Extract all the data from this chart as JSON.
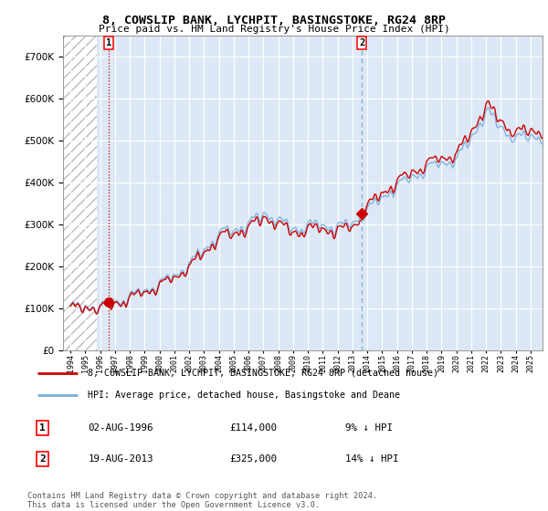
{
  "title": "8, COWSLIP BANK, LYCHPIT, BASINGSTOKE, RG24 8RP",
  "subtitle": "Price paid vs. HM Land Registry's House Price Index (HPI)",
  "legend_line1": "8, COWSLIP BANK, LYCHPIT, BASINGSTOKE, RG24 8RP (detached house)",
  "legend_line2": "HPI: Average price, detached house, Basingstoke and Deane",
  "footnote": "Contains HM Land Registry data © Crown copyright and database right 2024.\nThis data is licensed under the Open Government Licence v3.0.",
  "transaction1_date": "02-AUG-1996",
  "transaction1_price": "£114,000",
  "transaction1_hpi": "9% ↓ HPI",
  "transaction2_date": "19-AUG-2013",
  "transaction2_price": "£325,000",
  "transaction2_hpi": "14% ↓ HPI",
  "sale1_year": 1996.58,
  "sale1_price": 114000,
  "sale2_year": 2013.62,
  "sale2_price": 325000,
  "hatch_end_year": 1995.75,
  "dashed_line1_x": 1996.58,
  "dashed_line2_x": 2013.62,
  "ylim_max": 750000,
  "ylim_min": 0,
  "xlim_min": 1993.5,
  "xlim_max": 2025.8,
  "price_line_color": "#cc0000",
  "hpi_line_color": "#7aaddc",
  "hatch_color": "#bbbbbb",
  "plot_bg_color": "#dce8f5",
  "hatch_bg_color": "#ffffff",
  "grid_color": "#ffffff",
  "dashed1_color": "#cc0000",
  "dashed2_color": "#7aaddc"
}
